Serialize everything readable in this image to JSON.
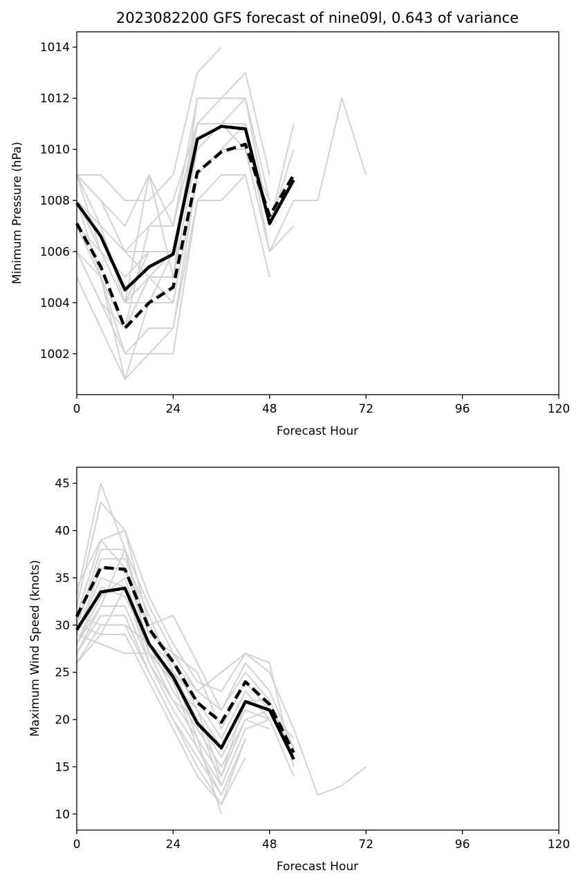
{
  "chart_data": [
    {
      "type": "line",
      "title": "2023082200 GFS forecast of nine09l, 0.643 of variance",
      "xlabel": "Forecast Hour",
      "ylabel": "Minimum Pressure (hPa)",
      "xlim": [
        0,
        120
      ],
      "ylim": [
        1000.4,
        1014.6
      ],
      "xticks": [
        0,
        24,
        48,
        72,
        96,
        120
      ],
      "yticks": [
        1002,
        1004,
        1006,
        1008,
        1010,
        1012,
        1014
      ],
      "grid": false,
      "colors": {
        "members": "#d3d3d3",
        "mean": "#000000"
      },
      "series": [
        {
          "style": "member",
          "x": [
            0,
            6,
            12,
            18,
            24,
            30,
            36
          ],
          "y": [
            1009,
            1009,
            1008,
            1008,
            1009,
            1013,
            1014
          ]
        },
        {
          "style": "member",
          "x": [
            0,
            6,
            12,
            18,
            24,
            30,
            36,
            42,
            48
          ],
          "y": [
            1009,
            1008,
            1007,
            1009,
            1007,
            1012,
            1012,
            1013,
            1009
          ]
        },
        {
          "style": "member",
          "x": [
            0,
            6,
            12,
            18,
            24,
            30,
            36,
            42,
            48,
            54
          ],
          "y": [
            1009,
            1008,
            1006,
            1007,
            1008,
            1011,
            1012,
            1012,
            1007,
            1011
          ]
        },
        {
          "style": "member",
          "x": [
            0,
            6,
            12,
            18,
            24,
            30,
            36,
            42,
            48,
            54,
            60,
            66,
            72
          ],
          "y": [
            1008,
            1007,
            1006,
            1006,
            1006,
            1010,
            1011,
            1011,
            1006,
            1008,
            1008,
            1012,
            1009
          ]
        },
        {
          "style": "member",
          "x": [
            0,
            6,
            12,
            18,
            24,
            30,
            36,
            42,
            48,
            54
          ],
          "y": [
            1008,
            1006,
            1005,
            1006,
            1006,
            1010,
            1011,
            1011,
            1007,
            1010
          ]
        },
        {
          "style": "member",
          "x": [
            0,
            6,
            12,
            18,
            24,
            30,
            36,
            42,
            48
          ],
          "y": [
            1007,
            1006,
            1004,
            1005,
            1005,
            1010,
            1011,
            1010,
            1008
          ]
        },
        {
          "style": "member",
          "x": [
            0,
            6,
            12,
            18,
            24,
            30,
            36,
            42,
            48,
            54
          ],
          "y": [
            1007,
            1005,
            1003,
            1005,
            1004,
            1009,
            1010,
            1010,
            1006,
            1007
          ]
        },
        {
          "style": "member",
          "x": [
            0,
            6,
            12,
            18,
            24,
            30,
            36,
            42,
            48
          ],
          "y": [
            1006,
            1005,
            1002,
            1003,
            1003,
            1008,
            1009,
            1009,
            1005
          ]
        },
        {
          "style": "member",
          "x": [
            0,
            6,
            12,
            18,
            24,
            30,
            36,
            42,
            48
          ],
          "y": [
            1006,
            1004,
            1002,
            1002,
            1003,
            1009,
            1010,
            1010,
            1006
          ]
        },
        {
          "style": "member",
          "x": [
            0,
            6,
            12,
            18,
            24,
            30,
            36,
            42
          ],
          "y": [
            1005,
            1003,
            1001,
            1002,
            1002,
            1008,
            1008,
            1009
          ]
        },
        {
          "style": "member",
          "x": [
            0,
            6,
            12,
            18,
            24,
            30,
            36,
            42
          ],
          "y": [
            1008,
            1005,
            1001,
            1004,
            1006,
            1011,
            1011,
            1010
          ]
        },
        {
          "style": "member",
          "x": [
            0,
            6,
            12,
            18,
            24,
            30,
            36
          ],
          "y": [
            1009,
            1007,
            1004,
            1009,
            1005,
            1012,
            1012
          ]
        },
        {
          "style": "member",
          "x": [
            0,
            6,
            12,
            18,
            24,
            30,
            36,
            42,
            48
          ],
          "y": [
            1007,
            1005,
            1003,
            1007,
            1007,
            1011,
            1011,
            1012,
            1007
          ]
        },
        {
          "style": "member",
          "x": [
            0,
            6,
            12,
            18,
            24,
            30
          ],
          "y": [
            1008,
            1006,
            1004,
            1006,
            1006,
            1011
          ]
        },
        {
          "style": "member",
          "x": [
            0,
            6,
            12,
            18,
            24,
            30,
            36,
            42
          ],
          "y": [
            1009,
            1006,
            1004,
            1004,
            1004,
            1009,
            1010,
            1011
          ]
        },
        {
          "style": "member",
          "x": [
            0,
            6,
            12,
            18,
            24,
            30,
            36,
            42,
            48
          ],
          "y": [
            1009,
            1008,
            1006,
            1005,
            1006,
            1011,
            1012,
            1012,
            1008
          ]
        },
        {
          "style": "member",
          "x": [
            0,
            6,
            12,
            18,
            24
          ],
          "y": [
            1006,
            1004,
            1003,
            1005,
            1005
          ]
        },
        {
          "style": "mean-solid",
          "x": [
            0,
            6,
            12,
            18,
            24,
            30,
            36,
            42,
            48,
            54
          ],
          "y": [
            1007.9,
            1006.6,
            1004.5,
            1005.4,
            1005.9,
            1010.4,
            1010.9,
            1010.8,
            1007.1,
            1008.8
          ]
        },
        {
          "style": "mean-dashed",
          "x": [
            0,
            6,
            12,
            18,
            24,
            30,
            36,
            42,
            48,
            54
          ],
          "y": [
            1007.1,
            1005.4,
            1003.0,
            1004.0,
            1004.6,
            1009.1,
            1009.9,
            1010.2,
            1007.4,
            1009.0
          ]
        }
      ]
    },
    {
      "type": "line",
      "title": "",
      "xlabel": "Forecast Hour",
      "ylabel": "Maximum Wind Speed (knots)",
      "xlim": [
        0,
        120
      ],
      "ylim": [
        8.3,
        46.7
      ],
      "xticks": [
        0,
        24,
        48,
        72,
        96,
        120
      ],
      "yticks": [
        10,
        15,
        20,
        25,
        30,
        35,
        40,
        45
      ],
      "grid": false,
      "colors": {
        "members": "#d3d3d3",
        "mean": "#000000"
      },
      "series": [
        {
          "style": "member",
          "x": [
            0,
            6,
            12,
            18,
            24,
            30,
            36,
            42,
            48,
            54
          ],
          "y": [
            33,
            45,
            38,
            32,
            27,
            23,
            25,
            27,
            26,
            15
          ]
        },
        {
          "style": "member",
          "x": [
            0,
            6,
            12,
            18,
            24,
            30,
            36,
            42,
            48,
            54,
            60,
            66,
            72
          ],
          "y": [
            32,
            43,
            40,
            33,
            28,
            24,
            23,
            27,
            25,
            19,
            12,
            13,
            15
          ]
        },
        {
          "style": "member",
          "x": [
            0,
            6,
            12,
            18,
            24,
            30,
            36,
            42,
            48,
            54
          ],
          "y": [
            34,
            39,
            40,
            30,
            31,
            26,
            21,
            26,
            23,
            17
          ]
        },
        {
          "style": "member",
          "x": [
            0,
            6,
            12,
            18,
            24,
            30,
            36,
            42,
            48,
            54
          ],
          "y": [
            31,
            39,
            36,
            30,
            26,
            23,
            21,
            25,
            22,
            16
          ]
        },
        {
          "style": "member",
          "x": [
            0,
            6,
            12,
            18,
            24,
            30,
            36,
            42,
            48,
            54
          ],
          "y": [
            30,
            38,
            38,
            29,
            27,
            25,
            19,
            24,
            21,
            18
          ]
        },
        {
          "style": "member",
          "x": [
            0,
            6,
            12,
            18,
            24,
            30,
            36,
            42,
            48,
            54
          ],
          "y": [
            30,
            37,
            37,
            31,
            25,
            22,
            18,
            23,
            20,
            14
          ]
        },
        {
          "style": "member",
          "x": [
            0,
            6,
            12,
            18,
            24,
            30,
            36,
            42,
            48
          ],
          "y": [
            29,
            36,
            36,
            28,
            26,
            21,
            17,
            22,
            22
          ]
        },
        {
          "style": "member",
          "x": [
            0,
            6,
            12,
            18,
            24,
            30,
            36,
            42,
            48
          ],
          "y": [
            29,
            35,
            34,
            27,
            25,
            20,
            16,
            21,
            20
          ]
        },
        {
          "style": "member",
          "x": [
            0,
            6,
            12,
            18,
            24,
            30,
            36,
            42,
            48
          ],
          "y": [
            28,
            34,
            33,
            28,
            23,
            19,
            15,
            20,
            19
          ]
        },
        {
          "style": "member",
          "x": [
            0,
            6,
            12,
            18,
            24,
            30,
            36,
            42,
            48
          ],
          "y": [
            28,
            33,
            35,
            27,
            22,
            18,
            14,
            20,
            21
          ]
        },
        {
          "style": "member",
          "x": [
            0,
            6,
            12,
            18,
            24,
            30,
            36,
            42,
            48
          ],
          "y": [
            27,
            32,
            32,
            26,
            21,
            17,
            13,
            19,
            20
          ]
        },
        {
          "style": "member",
          "x": [
            0,
            6,
            12,
            18,
            24,
            30,
            36,
            42
          ],
          "y": [
            27,
            31,
            31,
            25,
            20,
            16,
            12,
            18
          ]
        },
        {
          "style": "member",
          "x": [
            0,
            6,
            12,
            18,
            24,
            30,
            36,
            42
          ],
          "y": [
            26,
            30,
            30,
            25,
            20,
            15,
            11,
            18
          ]
        },
        {
          "style": "member",
          "x": [
            0,
            6,
            12,
            18,
            24,
            30,
            36,
            42
          ],
          "y": [
            26,
            29,
            29,
            24,
            19,
            14,
            11,
            16
          ]
        },
        {
          "style": "member",
          "x": [
            0,
            6,
            12,
            18,
            24,
            30,
            36
          ],
          "y": [
            29,
            28,
            27,
            27,
            25,
            18,
            10
          ]
        },
        {
          "style": "member",
          "x": [
            0,
            6,
            12,
            18,
            24,
            30,
            36
          ],
          "y": [
            30,
            29,
            34,
            26,
            22,
            20,
            13
          ]
        },
        {
          "style": "member",
          "x": [
            0,
            6,
            12,
            18,
            24,
            30,
            36,
            42
          ],
          "y": [
            31,
            30,
            30,
            28,
            24,
            21,
            14,
            22
          ]
        },
        {
          "style": "member",
          "x": [
            0,
            6,
            12,
            18,
            24,
            30,
            36
          ],
          "y": [
            28,
            32,
            38,
            27,
            24,
            17,
            12
          ]
        },
        {
          "style": "mean-solid",
          "x": [
            0,
            6,
            12,
            18,
            24,
            30,
            36,
            42,
            48,
            54
          ],
          "y": [
            29.5,
            33.5,
            33.9,
            28.0,
            24.5,
            19.6,
            17.0,
            21.9,
            21.0,
            15.8
          ]
        },
        {
          "style": "mean-dashed",
          "x": [
            0,
            6,
            12,
            18,
            24,
            30,
            36,
            42,
            48,
            54
          ],
          "y": [
            30.9,
            36.1,
            35.9,
            29.6,
            26.1,
            21.8,
            19.7,
            24.0,
            21.6,
            16.5
          ]
        }
      ]
    }
  ]
}
